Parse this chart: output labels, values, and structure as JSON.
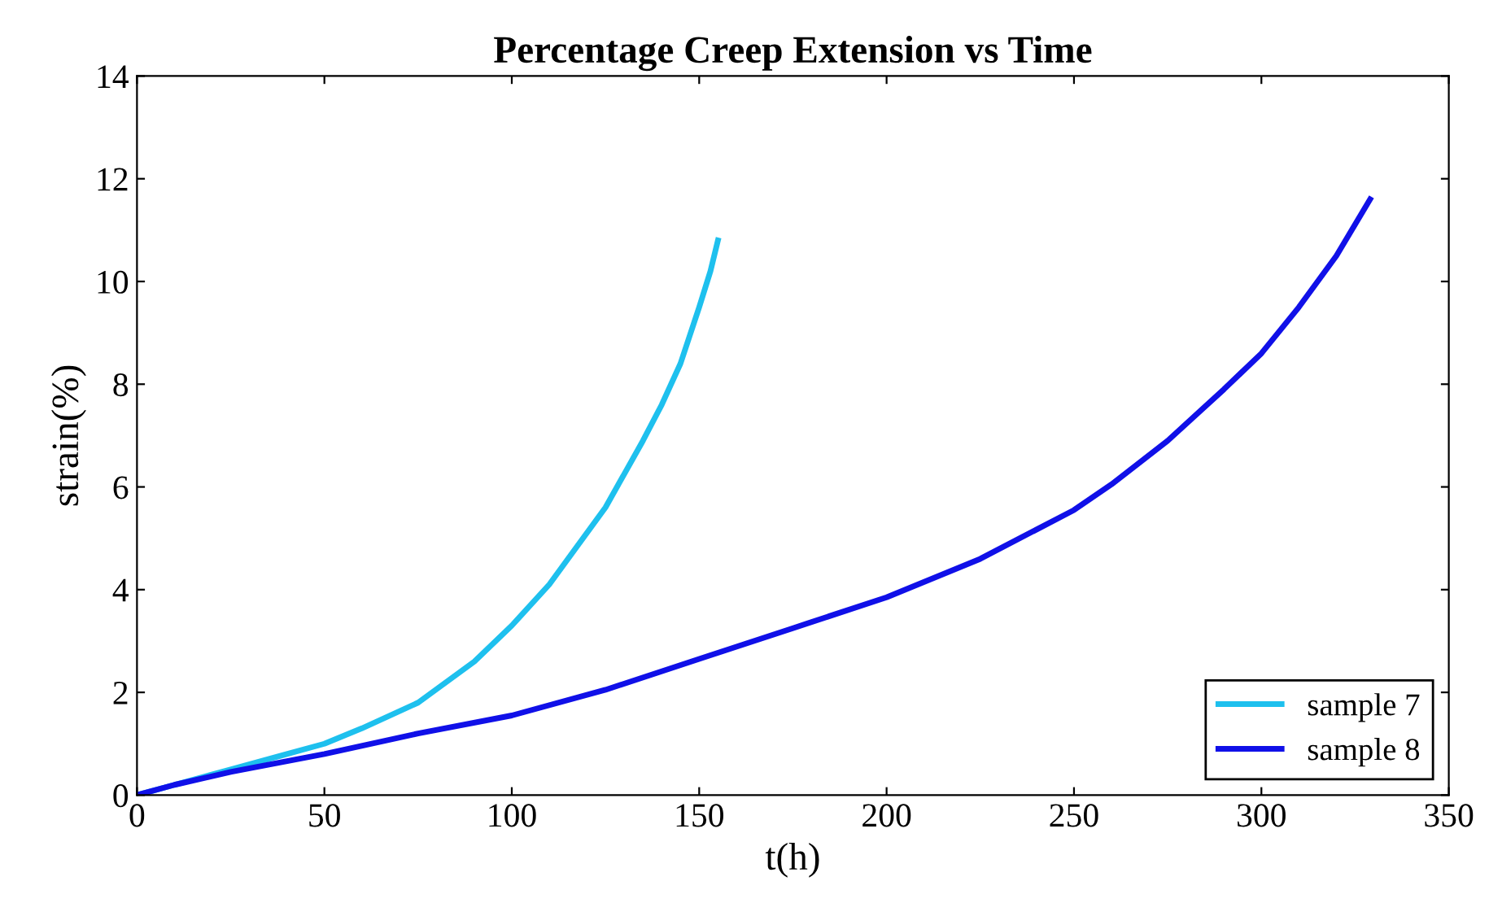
{
  "chart_data": {
    "type": "line",
    "title": "Percentage Creep Extension vs Time",
    "xlabel": "t(h)",
    "ylabel": "strain(%)",
    "xlim": [
      0,
      350
    ],
    "xticks": [
      0,
      50,
      100,
      150,
      200,
      250,
      300,
      350
    ],
    "ylim": [
      0,
      14
    ],
    "yticks": [
      0,
      2,
      4,
      6,
      8,
      10,
      12,
      14
    ],
    "grid": false,
    "legend": "bottom right",
    "line_style": "solid",
    "series": [
      {
        "name": "sample 7",
        "color": "#1ec0ee",
        "x": [
          0,
          10,
          25,
          40,
          50,
          60,
          75,
          90,
          100,
          110,
          125,
          135,
          140,
          145,
          150,
          153,
          155
        ],
        "values": [
          0,
          0.2,
          0.5,
          0.8,
          1.0,
          1.3,
          1.8,
          2.6,
          3.3,
          4.1,
          5.6,
          6.9,
          7.6,
          8.4,
          9.5,
          10.2,
          10.8
        ]
      },
      {
        "name": "sample 8",
        "color": "#1010e8",
        "x": [
          0,
          10,
          25,
          50,
          75,
          100,
          125,
          150,
          175,
          200,
          225,
          250,
          260,
          275,
          290,
          300,
          310,
          320,
          329
        ],
        "values": [
          0,
          0.2,
          0.45,
          0.8,
          1.2,
          1.55,
          2.05,
          2.65,
          3.25,
          3.85,
          4.6,
          5.55,
          6.05,
          6.9,
          7.9,
          8.6,
          9.5,
          10.5,
          11.6
        ]
      }
    ]
  }
}
